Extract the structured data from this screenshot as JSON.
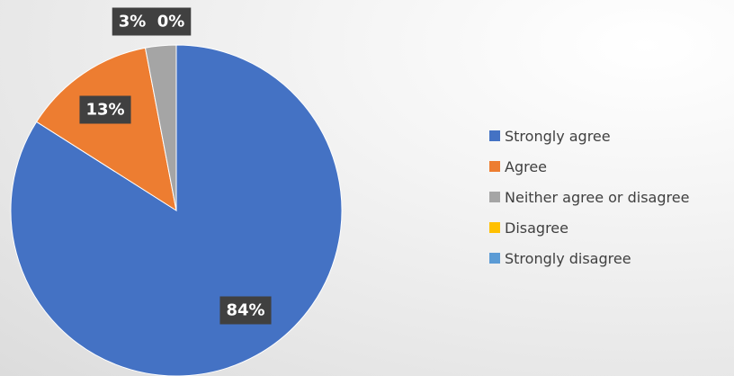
{
  "chart_data": {
    "type": "pie",
    "categories": [
      "Strongly agree",
      "Agree",
      "Neither agree or disagree",
      "Disagree",
      "Strongly disagree"
    ],
    "values": [
      84,
      13,
      3,
      0,
      0
    ],
    "data_labels": [
      "84%",
      "13%",
      "3%",
      "0%",
      ""
    ],
    "colors": [
      "#4472C4",
      "#ED7D31",
      "#A5A5A5",
      "#FFC000",
      "#5B9BD5"
    ],
    "label_background": "#404040",
    "label_color": "#FFFFFF",
    "legend_placement": "right"
  },
  "legend": {
    "items": [
      {
        "label": "Strongly agree",
        "color": "#4472C4"
      },
      {
        "label": "Agree",
        "color": "#ED7D31"
      },
      {
        "label": "Neither agree or disagree",
        "color": "#A5A5A5"
      },
      {
        "label": "Disagree",
        "color": "#FFC000"
      },
      {
        "label": "Strongly disagree",
        "color": "#5B9BD5"
      }
    ]
  }
}
